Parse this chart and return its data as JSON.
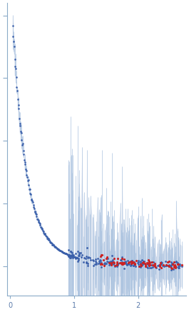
{
  "title": "",
  "xlabel": "",
  "ylabel": "",
  "xlim": [
    -0.05,
    2.75
  ],
  "bg_color": "#ffffff",
  "blue_color": "#3a5faa",
  "red_color": "#cc2222",
  "errorbar_color": "#adc4e0",
  "seed": 42,
  "n_blue_dense": 130,
  "n_blue_sparse": 200,
  "n_red": 90,
  "xticks": [
    0,
    1,
    2
  ],
  "xtick_labels": [
    "0",
    "1",
    "2"
  ]
}
